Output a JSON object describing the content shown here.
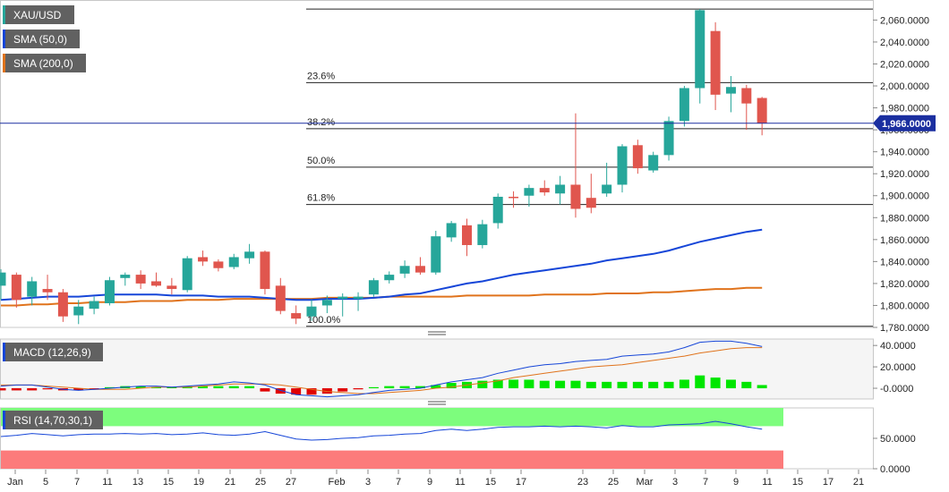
{
  "colors": {
    "up": "#26a69a",
    "down": "#e0564e",
    "sma50": "#1646d8",
    "sma200": "#e0731c",
    "macd_line": "#1646d8",
    "signal_line": "#e0731c",
    "hist_pos": "#00e600",
    "hist_neg": "#e00000",
    "rsi_line": "#1646d8",
    "rsi_over": "#7dfd7d",
    "rsi_under": "#fc7b7b",
    "price_line": "#1b2fa0",
    "grid": "#d8d8d8"
  },
  "chart_data": [
    {
      "type": "candlestick",
      "title": "XAU/USD",
      "ylim": [
        1780,
        2075
      ],
      "yticks": [
        "2,060.0000",
        "2,040.0000",
        "2,020.0000",
        "2,000.0000",
        "1,980.0000",
        "1,960.0000",
        "1,940.0000",
        "1,920.0000",
        "1,900.0000",
        "1,880.0000",
        "1,860.0000",
        "1,840.0000",
        "1,820.0000",
        "1,800.0000",
        "1,780.0000"
      ],
      "xtick_labels": [
        "Jan",
        "5",
        "7",
        "11",
        "13",
        "15",
        "19",
        "21",
        "25",
        "27",
        "Feb",
        "3",
        "7",
        "9",
        "11",
        "15",
        "17",
        "23",
        "25",
        "Mar",
        "3",
        "7",
        "9",
        "11",
        "15",
        "17",
        "21"
      ],
      "last_price_label": "1,966.0000",
      "last_price": 1966,
      "legend": [
        {
          "label": "SMA (50,0)",
          "color_key": "sma50"
        },
        {
          "label": "SMA (200,0)",
          "color_key": "sma200"
        }
      ],
      "fib_levels": [
        {
          "label": "23.6%",
          "value": 2003
        },
        {
          "label": "38.2%",
          "value": 1961
        },
        {
          "label": "50.0%",
          "value": 1926
        },
        {
          "label": "61.8%",
          "value": 1892
        },
        {
          "label": "100.0%",
          "value": 1781
        }
      ],
      "fib_top": 2070,
      "candles": [
        {
          "o": 1818,
          "h": 1833,
          "l": 1805,
          "c": 1830
        },
        {
          "o": 1828,
          "h": 1830,
          "l": 1798,
          "c": 1805
        },
        {
          "o": 1808,
          "h": 1826,
          "l": 1800,
          "c": 1822
        },
        {
          "o": 1815,
          "h": 1828,
          "l": 1805,
          "c": 1812
        },
        {
          "o": 1812,
          "h": 1815,
          "l": 1785,
          "c": 1790
        },
        {
          "o": 1791,
          "h": 1805,
          "l": 1783,
          "c": 1799
        },
        {
          "o": 1797,
          "h": 1808,
          "l": 1792,
          "c": 1804
        },
        {
          "o": 1802,
          "h": 1826,
          "l": 1800,
          "c": 1823
        },
        {
          "o": 1825,
          "h": 1830,
          "l": 1818,
          "c": 1828
        },
        {
          "o": 1828,
          "h": 1832,
          "l": 1815,
          "c": 1820
        },
        {
          "o": 1822,
          "h": 1830,
          "l": 1817,
          "c": 1818
        },
        {
          "o": 1818,
          "h": 1825,
          "l": 1810,
          "c": 1815
        },
        {
          "o": 1814,
          "h": 1845,
          "l": 1812,
          "c": 1843
        },
        {
          "o": 1844,
          "h": 1850,
          "l": 1836,
          "c": 1840
        },
        {
          "o": 1840,
          "h": 1842,
          "l": 1831,
          "c": 1834
        },
        {
          "o": 1835,
          "h": 1847,
          "l": 1833,
          "c": 1844
        },
        {
          "o": 1843,
          "h": 1856,
          "l": 1838,
          "c": 1849
        },
        {
          "o": 1849,
          "h": 1850,
          "l": 1810,
          "c": 1815
        },
        {
          "o": 1818,
          "h": 1825,
          "l": 1792,
          "c": 1795
        },
        {
          "o": 1793,
          "h": 1800,
          "l": 1783,
          "c": 1788
        },
        {
          "o": 1790,
          "h": 1805,
          "l": 1786,
          "c": 1799
        },
        {
          "o": 1800,
          "h": 1809,
          "l": 1793,
          "c": 1805
        },
        {
          "o": 1806,
          "h": 1811,
          "l": 1790,
          "c": 1808
        },
        {
          "o": 1806,
          "h": 1812,
          "l": 1795,
          "c": 1808
        },
        {
          "o": 1810,
          "h": 1825,
          "l": 1808,
          "c": 1823
        },
        {
          "o": 1823,
          "h": 1831,
          "l": 1820,
          "c": 1828
        },
        {
          "o": 1829,
          "h": 1841,
          "l": 1825,
          "c": 1836
        },
        {
          "o": 1836,
          "h": 1844,
          "l": 1828,
          "c": 1830
        },
        {
          "o": 1830,
          "h": 1868,
          "l": 1828,
          "c": 1863
        },
        {
          "o": 1862,
          "h": 1877,
          "l": 1858,
          "c": 1875
        },
        {
          "o": 1873,
          "h": 1879,
          "l": 1845,
          "c": 1855
        },
        {
          "o": 1855,
          "h": 1878,
          "l": 1852,
          "c": 1874
        },
        {
          "o": 1875,
          "h": 1902,
          "l": 1870,
          "c": 1899
        },
        {
          "o": 1899,
          "h": 1904,
          "l": 1889,
          "c": 1898
        },
        {
          "o": 1900,
          "h": 1910,
          "l": 1890,
          "c": 1907
        },
        {
          "o": 1907,
          "h": 1914,
          "l": 1900,
          "c": 1903
        },
        {
          "o": 1902,
          "h": 1918,
          "l": 1892,
          "c": 1910
        },
        {
          "o": 1910,
          "h": 1975,
          "l": 1880,
          "c": 1888
        },
        {
          "o": 1898,
          "h": 1920,
          "l": 1884,
          "c": 1889
        },
        {
          "o": 1902,
          "h": 1930,
          "l": 1899,
          "c": 1910
        },
        {
          "o": 1910,
          "h": 1947,
          "l": 1903,
          "c": 1945
        },
        {
          "o": 1946,
          "h": 1951,
          "l": 1920,
          "c": 1925
        },
        {
          "o": 1923,
          "h": 1940,
          "l": 1921,
          "c": 1937
        },
        {
          "o": 1937,
          "h": 1972,
          "l": 1932,
          "c": 1968
        },
        {
          "o": 1968,
          "h": 2000,
          "l": 1963,
          "c": 1998
        },
        {
          "o": 1998,
          "h": 2070,
          "l": 1984,
          "c": 2069
        },
        {
          "o": 2050,
          "h": 2058,
          "l": 1978,
          "c": 1992
        },
        {
          "o": 1993,
          "h": 2009,
          "l": 1976,
          "c": 1999
        },
        {
          "o": 1998,
          "h": 2001,
          "l": 1960,
          "c": 1984
        },
        {
          "o": 1989,
          "h": 1990,
          "l": 1955,
          "c": 1966
        }
      ],
      "sma50": [
        1805,
        1806,
        1807,
        1808,
        1808,
        1808,
        1809,
        1810,
        1810,
        1810,
        1810,
        1809,
        1809,
        1809,
        1808,
        1808,
        1808,
        1807,
        1806,
        1805,
        1805,
        1806,
        1806,
        1806,
        1807,
        1808,
        1810,
        1811,
        1814,
        1817,
        1820,
        1822,
        1825,
        1828,
        1830,
        1832,
        1834,
        1836,
        1838,
        1841,
        1843,
        1845,
        1847,
        1850,
        1854,
        1858,
        1861,
        1864,
        1867,
        1869
      ],
      "sma200": [
        1800,
        1800,
        1801,
        1801,
        1802,
        1802,
        1803,
        1803,
        1803,
        1804,
        1804,
        1804,
        1805,
        1805,
        1805,
        1806,
        1806,
        1806,
        1806,
        1806,
        1806,
        1807,
        1807,
        1807,
        1807,
        1808,
        1808,
        1808,
        1808,
        1808,
        1809,
        1809,
        1809,
        1809,
        1809,
        1810,
        1810,
        1810,
        1810,
        1811,
        1811,
        1811,
        1812,
        1812,
        1813,
        1814,
        1815,
        1815,
        1816,
        1816
      ]
    },
    {
      "type": "line",
      "title": "MACD (12,26,9)",
      "ylim": [
        -10,
        46
      ],
      "yticks": [
        "40.0000",
        "20.0000",
        "-0.0000"
      ],
      "macd": [
        2,
        3,
        3,
        1,
        -1,
        -2,
        -1,
        0,
        1,
        2,
        2,
        1,
        2,
        3,
        4,
        6,
        5,
        3,
        -2,
        -6,
        -7,
        -8,
        -7,
        -6,
        -4,
        -2,
        -1,
        0,
        3,
        6,
        8,
        10,
        14,
        17,
        20,
        22,
        23,
        25,
        26,
        27,
        30,
        31,
        32,
        34,
        38,
        43,
        44,
        44,
        42,
        39
      ],
      "signal": [
        3,
        3,
        3,
        2,
        1,
        0,
        -1,
        -1,
        -1,
        0,
        1,
        1,
        1,
        2,
        3,
        4,
        4,
        4,
        3,
        1,
        -1,
        -3,
        -4,
        -5,
        -5,
        -4,
        -3,
        -2,
        0,
        1,
        3,
        5,
        7,
        10,
        12,
        14,
        16,
        18,
        20,
        21,
        22,
        24,
        26,
        28,
        30,
        33,
        35,
        37,
        38,
        38
      ],
      "hist": [
        -2,
        -2,
        -2,
        -1,
        -2,
        -2,
        -1,
        1,
        2,
        2,
        1,
        1,
        2,
        2,
        2,
        2,
        2,
        -3,
        -5,
        -6,
        -6,
        -5,
        -3,
        -1,
        1,
        2,
        2,
        2,
        3,
        5,
        6,
        7,
        8,
        8,
        8,
        7,
        7,
        7,
        6,
        6,
        6,
        6,
        6,
        6,
        8,
        12,
        10,
        8,
        6,
        3
      ]
    },
    {
      "type": "line",
      "title": "RSI (14,70,30,1)",
      "ylim": [
        0,
        100
      ],
      "yticks": [
        "50.0000",
        "0.0000"
      ],
      "over": 70,
      "under": 30,
      "rsi": [
        53,
        55,
        58,
        56,
        54,
        56,
        57,
        57,
        58,
        57,
        58,
        56,
        57,
        59,
        56,
        55,
        57,
        61,
        55,
        49,
        47,
        48,
        50,
        51,
        54,
        55,
        57,
        58,
        63,
        65,
        63,
        65,
        68,
        69,
        69,
        70,
        69,
        70,
        69,
        67,
        71,
        69,
        69,
        72,
        73,
        74,
        78,
        74,
        69,
        65
      ]
    }
  ]
}
